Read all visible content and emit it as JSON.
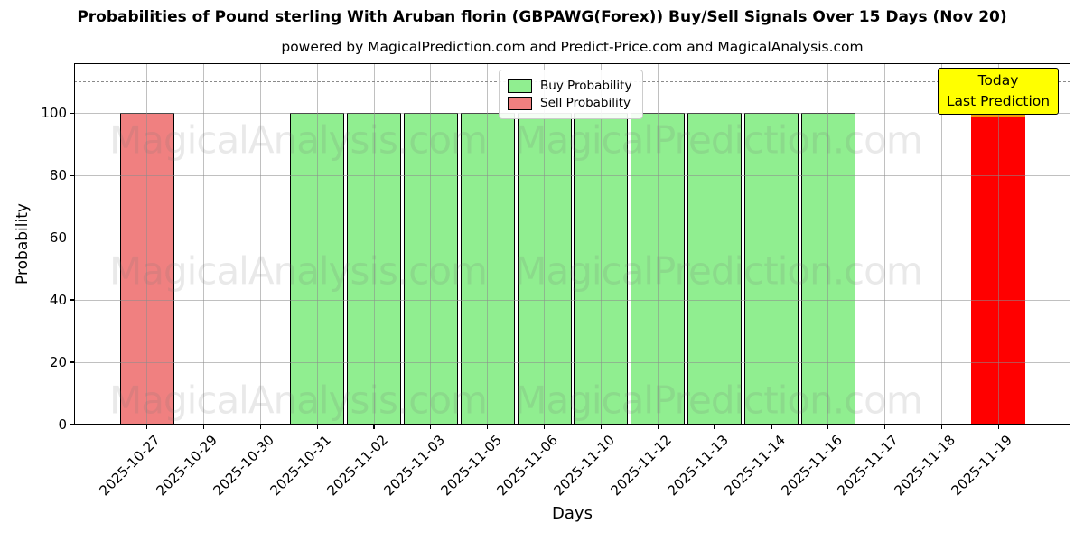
{
  "title": "Probabilities of Pound sterling With Aruban florin (GBPAWG(Forex)) Buy/Sell Signals Over 15 Days (Nov 20)",
  "subtitle": "powered by MagicalPrediction.com and Predict-Price.com and MagicalAnalysis.com",
  "axes": {
    "x_label": "Days",
    "y_label": "Probability",
    "y_ticks": [
      0,
      20,
      40,
      60,
      80,
      100
    ]
  },
  "legend": {
    "items": [
      {
        "label": "Buy Probability",
        "color": "#90ee90",
        "edge_color": "#000000"
      },
      {
        "label": "Sell Probability",
        "color": "#f08080",
        "edge_color": "#000000"
      }
    ]
  },
  "annotation": {
    "line1": "Today",
    "line2": "Last Prediction",
    "bg_color": "#ffff00",
    "border_color": "#000000"
  },
  "watermarks": {
    "texts": [
      "MagicalAnalysis.com",
      "MagicalPrediction.com"
    ]
  },
  "colors": {
    "buy": "#90ee90",
    "sell": "#f08080",
    "today_bar": "#ff0000",
    "today_bar_cap": "#eda008",
    "grid": "#b0b0b0",
    "dashed_line": "#8a8a8a"
  },
  "chart_data": {
    "type": "bar",
    "title": "Probabilities of Pound sterling With Aruban florin (GBPAWG(Forex)) Buy/Sell Signals Over 15 Days (Nov 20)",
    "xlabel": "Days",
    "ylabel": "Probability",
    "ylim": [
      0,
      116
    ],
    "grid": true,
    "legend_position": "upper center",
    "dashed_line_y": 110,
    "categories": [
      "2025-10-27",
      "2025-10-29",
      "2025-10-30",
      "2025-10-31",
      "2025-11-02",
      "2025-11-03",
      "2025-11-05",
      "2025-11-06",
      "2025-11-10",
      "2025-11-12",
      "2025-11-13",
      "2025-11-14",
      "2025-11-16",
      "2025-11-17",
      "2025-11-18",
      "2025-11-19"
    ],
    "series": [
      {
        "name": "Sell Probability",
        "color": "#f08080",
        "edge_color": "#000000",
        "values": [
          100,
          null,
          null,
          null,
          null,
          null,
          null,
          null,
          null,
          null,
          null,
          null,
          null,
          null,
          null,
          null
        ]
      },
      {
        "name": "Buy Probability",
        "color": "#90ee90",
        "edge_color": "#000000",
        "values": [
          null,
          null,
          null,
          100,
          100,
          100,
          100,
          100,
          100,
          100,
          100,
          100,
          100,
          null,
          null,
          null
        ]
      },
      {
        "name": "Today Last Prediction",
        "color": "#ff0000",
        "edge_color": "#ff0000",
        "cap_color": "#eda008",
        "values": [
          null,
          null,
          null,
          null,
          null,
          null,
          null,
          null,
          null,
          null,
          null,
          null,
          null,
          null,
          null,
          100
        ]
      }
    ]
  }
}
